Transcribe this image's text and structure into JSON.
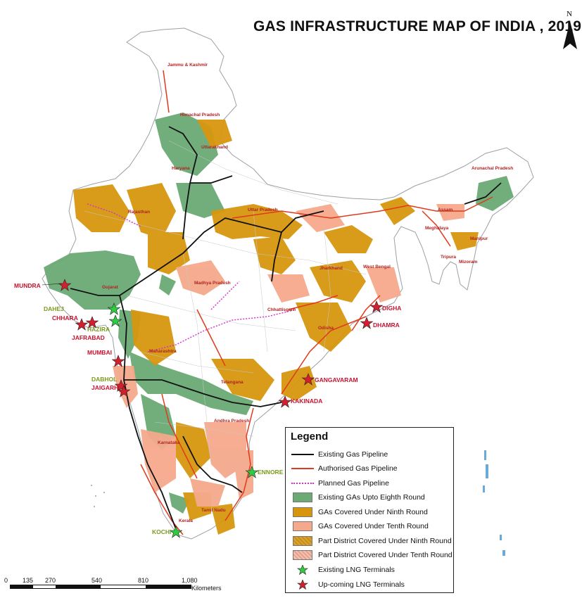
{
  "title": "GAS INFRASTRUCTURE MAP OF INDIA , 2019",
  "north_arrow": {
    "label": "N"
  },
  "colors": {
    "existing_pipeline": "#111111",
    "authorised_pipeline": "#e0391b",
    "planned_pipeline": "#d430c8",
    "existing_ga": "#6aaa74",
    "ninth_round": "#d8960e",
    "tenth_round": "#f5a98c",
    "part_ninth": "#c8900c",
    "part_tenth": "#e4a08a",
    "existing_lng": "#2ecc40",
    "upcoming_lng": "#d4202e"
  },
  "states": {
    "jk": "Jammu & Kashmir",
    "hp": "Himachal Pradesh",
    "uk": "Uttarakhand",
    "haryana": "Haryana",
    "rajasthan": "Rajasthan",
    "up": "Uttar Pradesh",
    "mp": "Madhya Pradesh",
    "gujarat": "Gujarat",
    "chhattisgarh": "Chhattisgarh",
    "jharkhand": "Jharkhand",
    "wb": "West Bengal",
    "odisha": "Odisha",
    "maharashtra": "Maharashtra",
    "telangana": "Telangana",
    "ap": "Andhra Pradesh",
    "karnataka": "Karnataka",
    "tn": "Tamil Nadu",
    "kerala": "Kerala",
    "arunachal": "Arunachal Pradesh",
    "assam": "Assam",
    "meghalaya": "Meghalaya",
    "manipur": "Manipur",
    "mizoram": "Mizoram",
    "tripura": "Tripura"
  },
  "terminals": {
    "mundra": "MUNDRA",
    "dahej": "DAHEJ",
    "chhara": "CHHARA",
    "hazira": "HAZIRA",
    "jafrabad": "JAFRABAD",
    "mumbai": "MUMBAI",
    "dabhol": "DABHOL",
    "jaigarh": "JAIGARH",
    "kochi": "KOCHI",
    "ennore": "ENNORE",
    "digha": "DIGHA",
    "dhamra": "DHAMRA",
    "gangavaram": "GANGAVARAM",
    "kakinada": "KAKINADA"
  },
  "legend": {
    "title": "Legend",
    "items": [
      "Existing Gas Pipeline",
      "Authorised Gas Pipeline",
      "Planned Gas Pipeline",
      "Existing GAs Upto Eighth Round",
      "GAs Covered Under Ninth Round",
      "GAs Covered Under Tenth Round",
      "Part District Covered Under Ninth Round",
      "Part District Covered Under Tenth Round",
      "Existing LNG Terminals",
      "Up-coming LNG Terminals"
    ]
  },
  "scale": {
    "ticks": [
      "0",
      "135",
      "270",
      "540",
      "810",
      "1,080"
    ],
    "unit": "Kilometers"
  }
}
